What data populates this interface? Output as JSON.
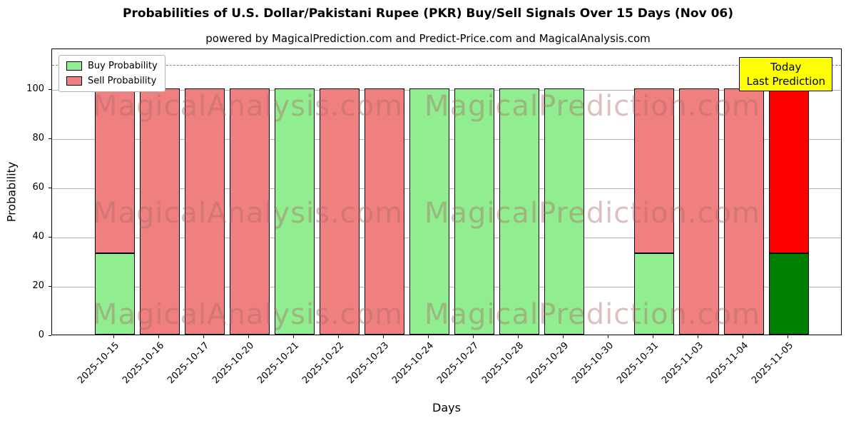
{
  "chart_data": {
    "type": "bar",
    "stacked": true,
    "title": "Probabilities of U.S. Dollar/Pakistani Rupee (PKR) Buy/Sell Signals Over 15 Days (Nov 06)",
    "subtitle": "powered by MagicalPrediction.com and Predict-Price.com and MagicalAnalysis.com",
    "xlabel": "Days",
    "ylabel": "Probability",
    "categories": [
      "2025-10-15",
      "2025-10-16",
      "2025-10-17",
      "2025-10-20",
      "2025-10-21",
      "2025-10-22",
      "2025-10-23",
      "2025-10-24",
      "2025-10-27",
      "2025-10-28",
      "2025-10-29",
      "2025-10-30",
      "2025-10-31",
      "2025-11-03",
      "2025-11-04",
      "2025-11-05"
    ],
    "series": [
      {
        "name": "Buy Probability",
        "color": "#90ee90",
        "values": [
          33,
          0,
          0,
          0,
          100,
          0,
          0,
          100,
          100,
          100,
          100,
          0,
          33,
          0,
          0,
          33
        ]
      },
      {
        "name": "Sell Probability",
        "color": "#f08080",
        "values": [
          67,
          100,
          100,
          100,
          0,
          100,
          100,
          0,
          0,
          0,
          0,
          0,
          67,
          100,
          100,
          67
        ]
      }
    ],
    "today_index": 15,
    "today_colors": {
      "buy": "#008000",
      "sell": "#ff0000"
    },
    "annotation": {
      "line1": "Today",
      "line2": "Last Prediction",
      "bg_color": "#ffff00"
    },
    "yticks": [
      0,
      20,
      40,
      60,
      80,
      100
    ],
    "ylim": [
      0,
      116.5
    ],
    "dashed_line_y": 110,
    "grid": true,
    "legend_position": "upper left",
    "watermarks": [
      "MagicalAnalysis.com",
      "MagicalPrediction.com"
    ]
  }
}
